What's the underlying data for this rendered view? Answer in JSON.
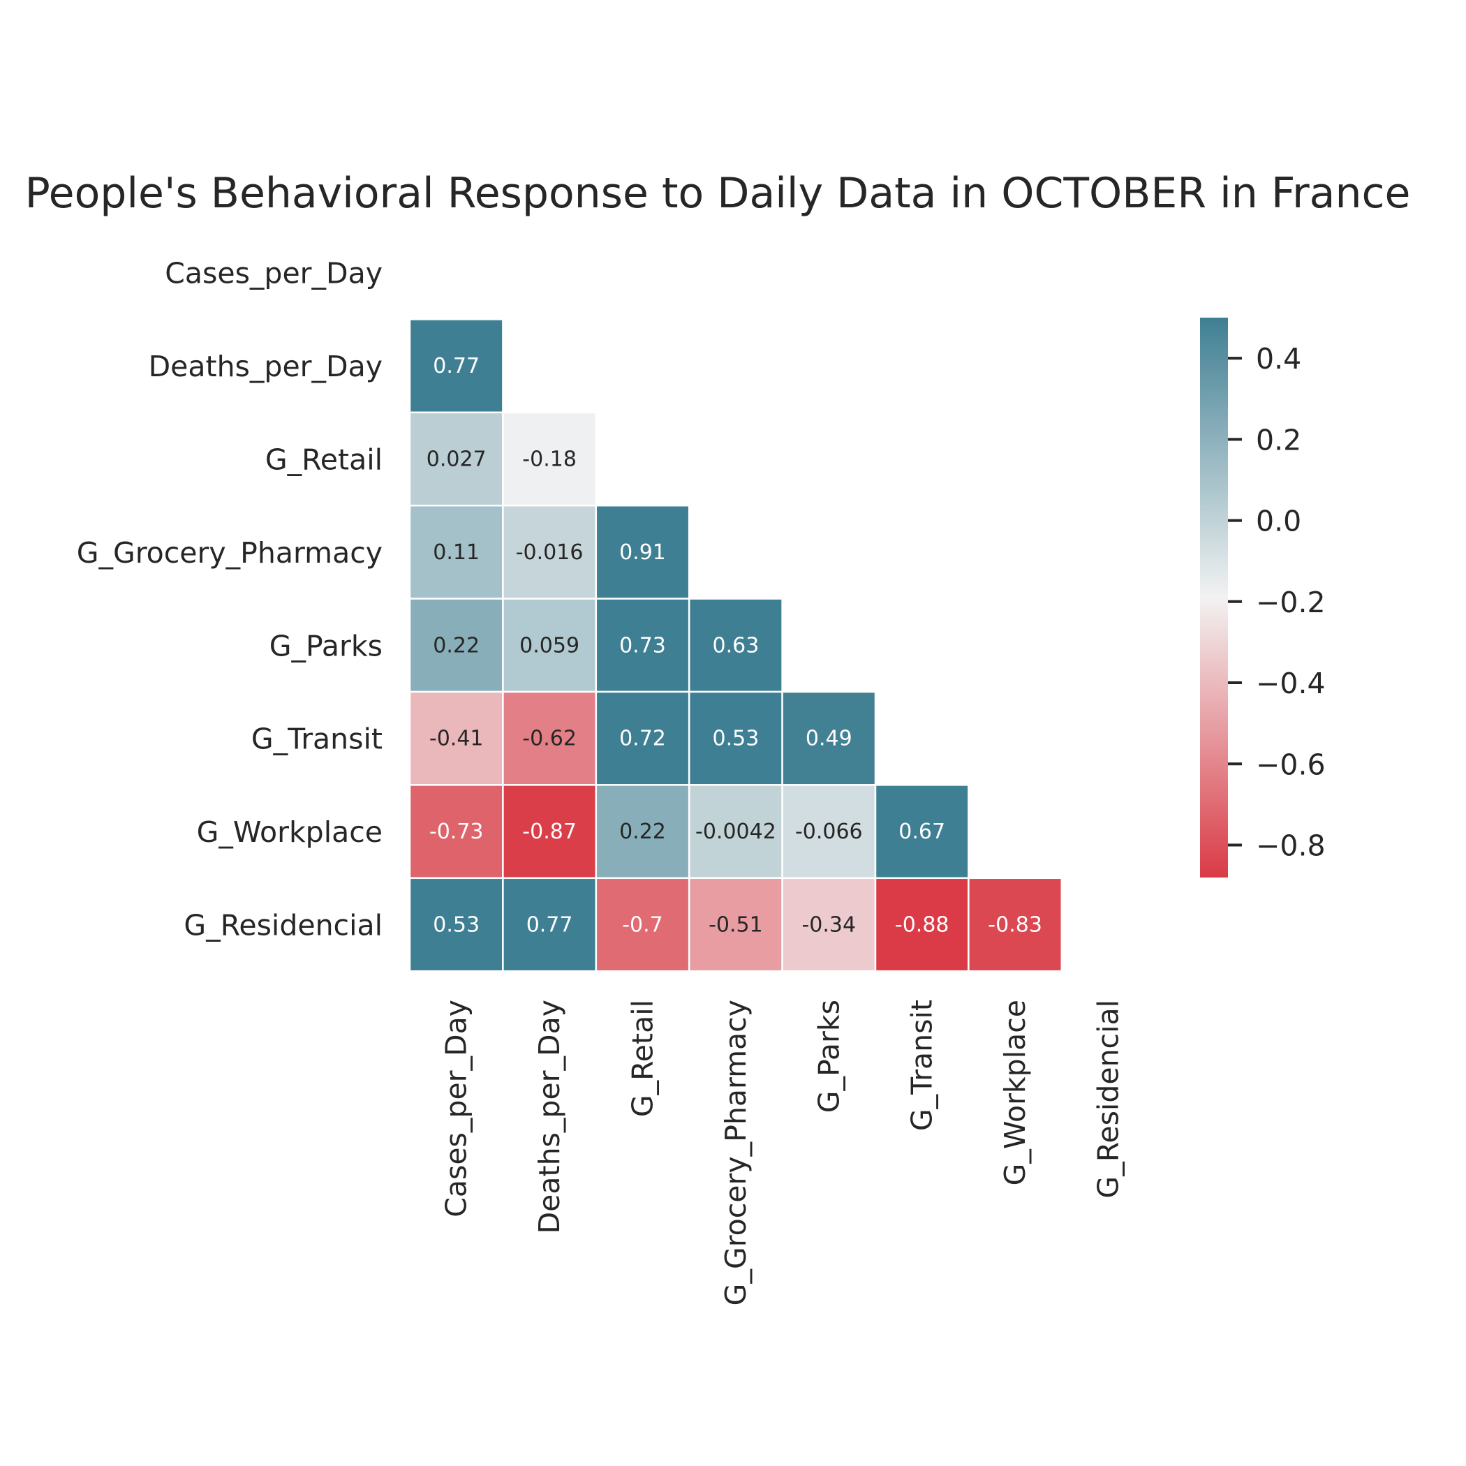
{
  "chart_data": {
    "type": "heatmap",
    "title": "People's Behavioral Response to Daily Data in OCTOBER in France",
    "variables": [
      "Cases_per_Day",
      "Deaths_per_Day",
      "G_Retail",
      "G_Grocery_Pharmacy",
      "G_Parks",
      "G_Transit",
      "G_Workplace",
      "G_Residencial"
    ],
    "mask": "upper-triangle-including-diagonal",
    "matrix": [
      [
        null,
        null,
        null,
        null,
        null,
        null,
        null,
        null
      ],
      [
        0.77,
        null,
        null,
        null,
        null,
        null,
        null,
        null
      ],
      [
        0.027,
        -0.18,
        null,
        null,
        null,
        null,
        null,
        null
      ],
      [
        0.11,
        -0.016,
        0.91,
        null,
        null,
        null,
        null,
        null
      ],
      [
        0.22,
        0.059,
        0.73,
        0.63,
        null,
        null,
        null,
        null
      ],
      [
        -0.41,
        -0.62,
        0.72,
        0.53,
        0.49,
        null,
        null,
        null
      ],
      [
        -0.73,
        -0.87,
        0.22,
        -0.0042,
        -0.066,
        0.67,
        null,
        null
      ],
      [
        0.53,
        0.77,
        -0.7,
        -0.51,
        -0.34,
        -0.88,
        -0.83,
        null
      ]
    ],
    "labels": [
      [
        "",
        "",
        "",
        "",
        "",
        "",
        "",
        ""
      ],
      [
        "0.77",
        "",
        "",
        "",
        "",
        "",
        "",
        ""
      ],
      [
        "0.027",
        "-0.18",
        "",
        "",
        "",
        "",
        "",
        ""
      ],
      [
        "0.11",
        "-0.016",
        "0.91",
        "",
        "",
        "",
        "",
        ""
      ],
      [
        "0.22",
        "0.059",
        "0.73",
        "0.63",
        "",
        "",
        "",
        ""
      ],
      [
        "-0.41",
        "-0.62",
        "0.72",
        "0.53",
        "0.49",
        "",
        "",
        ""
      ],
      [
        "-0.73",
        "-0.87",
        "0.22",
        "-0.0042",
        "-0.066",
        "0.67",
        "",
        ""
      ],
      [
        "0.53",
        "0.77",
        "-0.7",
        "-0.51",
        "-0.34",
        "-0.88",
        "-0.83",
        ""
      ]
    ],
    "colorbar": {
      "vmin": -0.88,
      "vmax": 0.5,
      "center": -0.19,
      "ticks": [
        0.4,
        0.2,
        0.0,
        -0.2,
        -0.4,
        -0.6,
        -0.8
      ],
      "tick_labels": [
        "0.4",
        "0.2",
        "0.0",
        "−0.2",
        "−0.4",
        "−0.6",
        "−0.8"
      ],
      "low_color": "#da3b46",
      "mid_color": "#f2f2f2",
      "high_color": "#3f7f93"
    },
    "grid": true
  }
}
